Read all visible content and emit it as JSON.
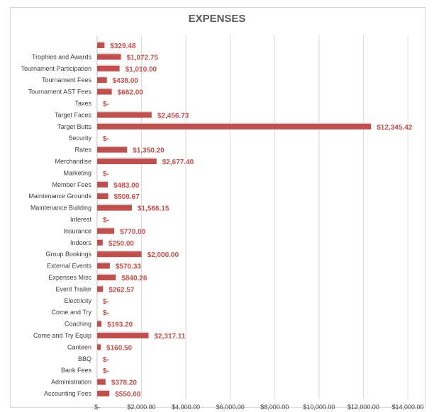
{
  "chart_data": {
    "type": "bar",
    "orientation": "horizontal",
    "title": "EXPENSES",
    "xlabel": "",
    "ylabel": "",
    "xlim": [
      0,
      14000
    ],
    "grid": true,
    "legend": "none",
    "bar_color": "#c0504d",
    "x_ticks": [
      "$-",
      "$2,000.00",
      "$4,000.00",
      "$6,000.00",
      "$8,000.00",
      "$10,000.00",
      "$12,000.00",
      "$14,000.00"
    ],
    "x_tick_values": [
      0,
      2000,
      4000,
      6000,
      8000,
      10000,
      12000,
      14000
    ],
    "categories": [
      "",
      "Trophies and Awards",
      "Tournament Participation",
      "Tournament Fees",
      "Tournament AST Fees",
      "Taxes",
      "Target Faces",
      "Target Butts",
      "Security",
      "Rates",
      "Merchandise",
      "Marketing",
      "Member Fees",
      "Maintenance Grounds",
      "Maintenance Building",
      "Interest",
      "Insurance",
      "Indoors",
      "Group Bookings",
      "External Events",
      "Expenses Misc",
      "Event Trailer",
      "Electricity",
      "Come and Try",
      "Coaching",
      "Come and Try Equip",
      "Canteen",
      "BBQ",
      "Bank Fees",
      "Administration",
      "Accounting Fees"
    ],
    "values": [
      329.48,
      1072.75,
      1010.0,
      438.0,
      662.0,
      0,
      2456.73,
      12345.42,
      0,
      1350.2,
      2677.4,
      0,
      483.0,
      500.67,
      1566.15,
      0,
      770.0,
      250.0,
      2000.0,
      570.33,
      840.26,
      262.57,
      0,
      0,
      193.2,
      2317.11,
      160.5,
      0,
      0,
      378.2,
      550.0
    ],
    "value_labels": [
      "$329.48",
      "$1,072.75",
      "$1,010.00",
      "$438.00",
      "$662.00",
      "$-",
      "$2,456.73",
      "$12,345.42",
      "$-",
      "$1,350.20",
      "$2,677.40",
      "$-",
      "$483.00",
      "$500.67",
      "$1,566.15",
      "$-",
      "$770.00",
      "$250.00",
      "$2,000.00",
      "$570.33",
      "$840.26",
      "$262.57",
      "$-",
      "$-",
      "$193.20",
      "$2,317.11",
      "$160.50",
      "$-",
      "$-",
      "$378.20",
      "$550.00"
    ]
  }
}
